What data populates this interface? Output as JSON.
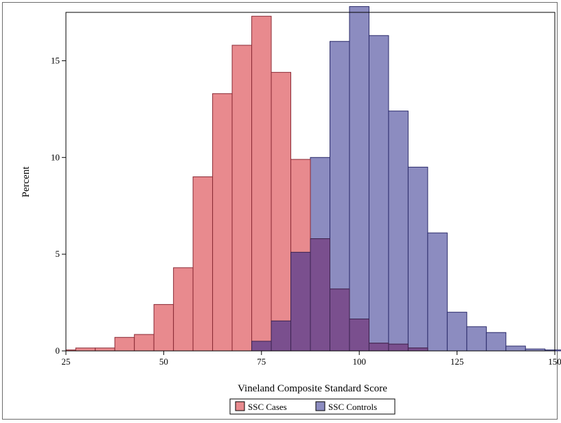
{
  "chart_data": {
    "type": "bar",
    "subtype": "overlaid-histogram",
    "title": "",
    "xlabel": "Vineland Composite Standard Score",
    "ylabel": "Percent",
    "xlim": [
      25,
      150
    ],
    "ylim": [
      0,
      17.5
    ],
    "bin_width": 5,
    "x_ticks": [
      "25",
      "50",
      "75",
      "100",
      "125",
      "150"
    ],
    "x_tick_values": [
      25,
      50,
      75,
      100,
      125,
      150
    ],
    "y_ticks": [
      "0",
      "5",
      "10",
      "15"
    ],
    "y_tick_values": [
      0,
      5,
      10,
      15
    ],
    "grid": false,
    "legend_position": "bottom-center",
    "overlap_color": "#7a4f8e",
    "series": [
      {
        "name": "SSC Cases",
        "color": "#e88a8e",
        "edge_color": "#8a2a35",
        "bins": [
          {
            "start": 25,
            "value": 0.05
          },
          {
            "start": 27.5,
            "value": 0.15
          },
          {
            "start": 32.5,
            "value": 0.15
          },
          {
            "start": 37.5,
            "value": 0.7
          },
          {
            "start": 42.5,
            "value": 0.85
          },
          {
            "start": 47.5,
            "value": 2.4
          },
          {
            "start": 52.5,
            "value": 4.3
          },
          {
            "start": 57.5,
            "value": 9.0
          },
          {
            "start": 62.5,
            "value": 13.3
          },
          {
            "start": 67.5,
            "value": 15.8
          },
          {
            "start": 72.5,
            "value": 17.3
          },
          {
            "start": 77.5,
            "value": 14.4
          },
          {
            "start": 82.5,
            "value": 9.9
          },
          {
            "start": 87.5,
            "value": 5.8
          },
          {
            "start": 92.5,
            "value": 3.2
          },
          {
            "start": 97.5,
            "value": 1.65
          },
          {
            "start": 102.5,
            "value": 0.4
          },
          {
            "start": 107.5,
            "value": 0.35
          },
          {
            "start": 112.5,
            "value": 0.15
          }
        ]
      },
      {
        "name": "SSC Controls",
        "color": "#8c8cc0",
        "edge_color": "#2a2a6a",
        "bins": [
          {
            "start": 72.5,
            "value": 0.5
          },
          {
            "start": 77.5,
            "value": 1.55
          },
          {
            "start": 82.5,
            "value": 5.1
          },
          {
            "start": 87.5,
            "value": 10.0
          },
          {
            "start": 92.5,
            "value": 16.0
          },
          {
            "start": 97.5,
            "value": 17.8
          },
          {
            "start": 102.5,
            "value": 16.3
          },
          {
            "start": 107.5,
            "value": 12.4
          },
          {
            "start": 112.5,
            "value": 9.5
          },
          {
            "start": 117.5,
            "value": 6.1
          },
          {
            "start": 122.5,
            "value": 2.0
          },
          {
            "start": 127.5,
            "value": 1.25
          },
          {
            "start": 132.5,
            "value": 0.95
          },
          {
            "start": 137.5,
            "value": 0.25
          },
          {
            "start": 142.5,
            "value": 0.1
          },
          {
            "start": 147.5,
            "value": 0.05
          }
        ]
      }
    ]
  }
}
